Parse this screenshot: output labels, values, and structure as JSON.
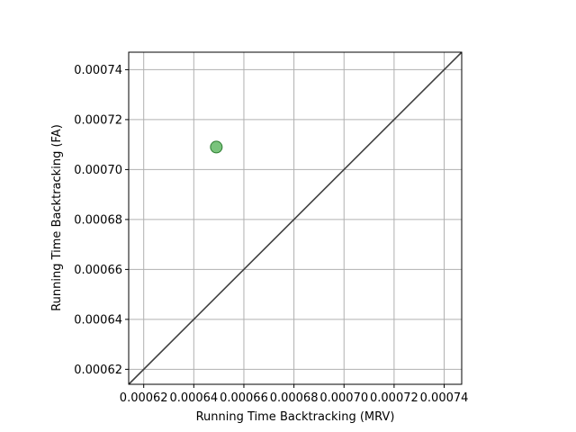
{
  "chart_data": {
    "type": "scatter",
    "title": "",
    "xlabel": "Running Time Backtracking (MRV)",
    "ylabel": "Running Time Backtracking (FA)",
    "xlim": [
      0.000614,
      0.000747
    ],
    "ylim": [
      0.000614,
      0.000747
    ],
    "x_ticks": [
      0.00062,
      0.00064,
      0.00066,
      0.00068,
      0.0007,
      0.00072,
      0.00074
    ],
    "x_tick_labels": [
      "0.00062",
      "0.00064",
      "0.00066",
      "0.00068",
      "0.00070",
      "0.00072",
      "0.00074"
    ],
    "y_ticks": [
      0.00062,
      0.00064,
      0.00066,
      0.00068,
      0.0007,
      0.00072,
      0.00074
    ],
    "y_tick_labels": [
      "0.00062",
      "0.00064",
      "0.00066",
      "0.00068",
      "0.00070",
      "0.00072",
      "0.00074"
    ],
    "grid": true,
    "legend": "none",
    "points": [
      {
        "x": 0.000649,
        "y": 0.000709
      }
    ],
    "reference_line": {
      "from": [
        0.000614,
        0.000614
      ],
      "to": [
        0.000747,
        0.000747
      ]
    },
    "point_color": "#4caf50",
    "point_edge_color": "#2e7d32",
    "line_color": "#404040",
    "grid_color": "#b0b0b0"
  }
}
